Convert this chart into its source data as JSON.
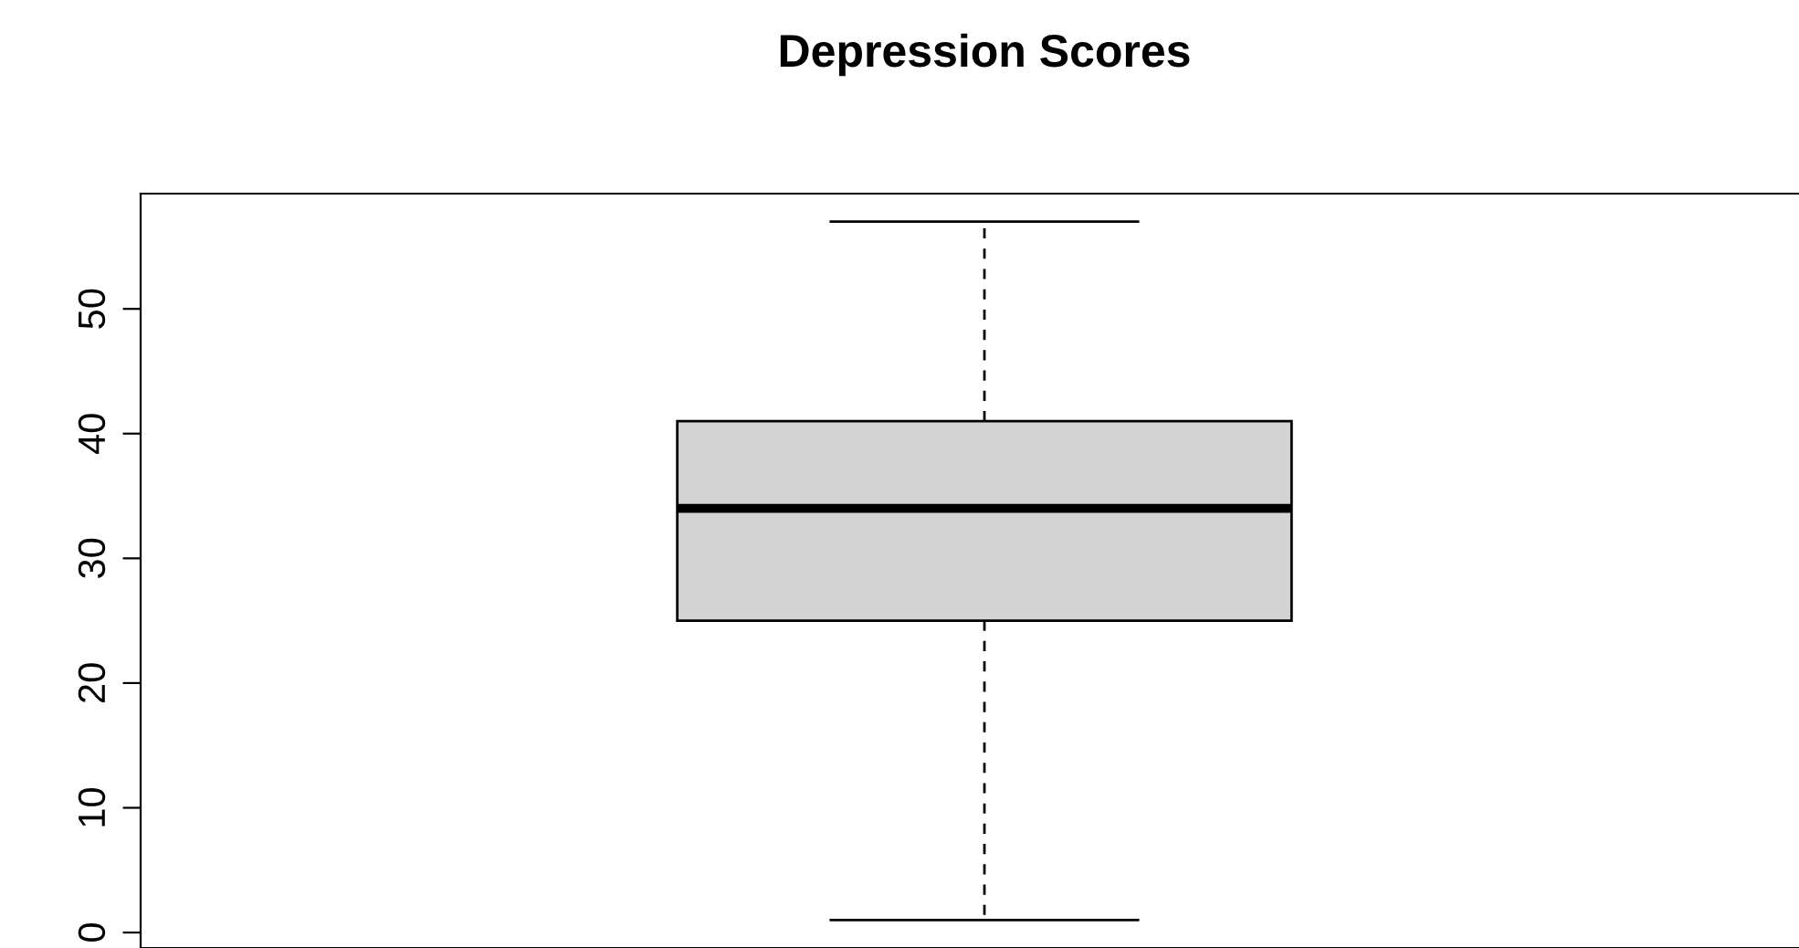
{
  "chart_data": {
    "type": "box",
    "title": "Depression Scores",
    "categories": [
      null
    ],
    "boxes": [
      {
        "low": 1,
        "q1": 25,
        "median": 34,
        "q3": 41,
        "high": 57
      }
    ],
    "color": "#d3d3d3",
    "ylim": [
      -1.24,
      59.24
    ],
    "yticks": [
      0,
      10,
      20,
      30,
      40,
      50
    ],
    "grid": false,
    "tick_labels": "y"
  }
}
